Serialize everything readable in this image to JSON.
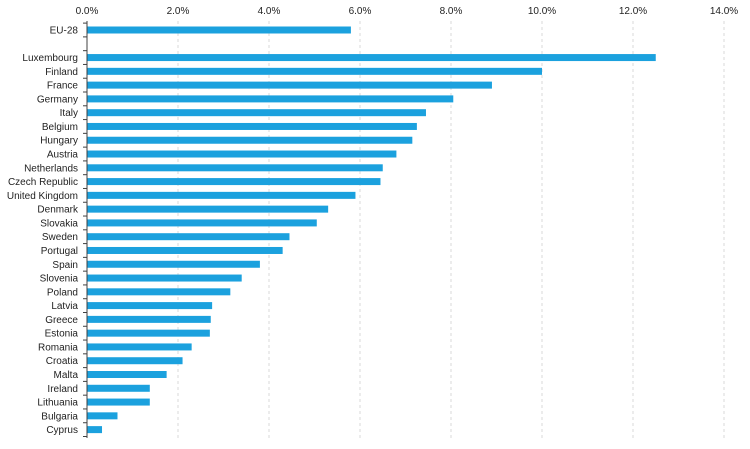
{
  "colors": {
    "bar": "#1ba1de",
    "grid": "#d9d9d9",
    "axis": "#404040",
    "text": "#222222"
  },
  "chart_data": {
    "type": "bar",
    "orientation": "horizontal",
    "title": "",
    "xlabel": "",
    "ylabel": "",
    "x_axis_position": "top",
    "xlim": [
      0,
      14
    ],
    "x_ticks": [
      0,
      2,
      4,
      6,
      8,
      10,
      12,
      14
    ],
    "x_tick_labels": [
      "0.0%",
      "2.0%",
      "4.0%",
      "6.0%",
      "8.0%",
      "10.0%",
      "12.0%",
      "14.0%"
    ],
    "grid": "vertical dashed",
    "legend": "none",
    "categories": [
      "EU-28",
      "",
      "Luxembourg",
      "Finland",
      "France",
      "Germany",
      "Italy",
      "Belgium",
      "Hungary",
      "Austria",
      "Netherlands",
      "Czech Republic",
      "United Kingdom",
      "Denmark",
      "Slovakia",
      "Sweden",
      "Portugal",
      "Spain",
      "Slovenia",
      "Poland",
      "Latvia",
      "Greece",
      "Estonia",
      "Romania",
      "Croatia",
      "Malta",
      "Ireland",
      "Lithuania",
      "Bulgaria",
      "Cyprus"
    ],
    "values": [
      5.8,
      null,
      12.5,
      10.0,
      8.9,
      8.05,
      7.45,
      7.25,
      7.15,
      6.8,
      6.5,
      6.45,
      5.9,
      5.3,
      5.05,
      4.45,
      4.3,
      3.8,
      3.4,
      3.15,
      2.75,
      2.72,
      2.7,
      2.3,
      2.1,
      1.75,
      1.38,
      1.38,
      0.67,
      0.33
    ]
  }
}
